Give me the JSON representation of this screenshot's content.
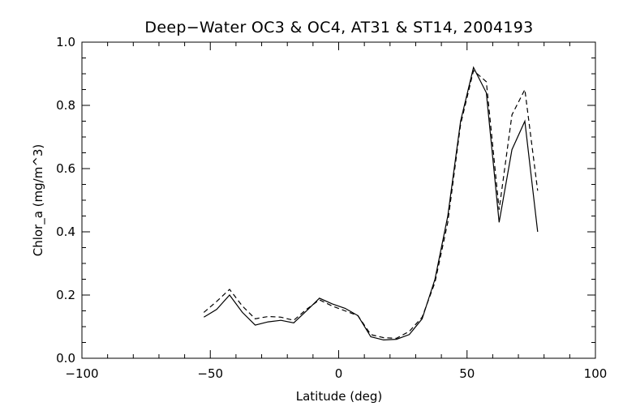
{
  "chart_data": {
    "type": "line",
    "title": "Deep−Water OC3 & OC4, AT31 & ST14, 2004193",
    "xlabel": "Latitude (deg)",
    "ylabel": "Chlor_a (mg/m^3)",
    "xlim": [
      -100,
      100
    ],
    "ylim": [
      0.0,
      1.0
    ],
    "xticks": [
      -100,
      -50,
      0,
      50,
      100
    ],
    "xtick_labels": [
      "−100",
      "−50",
      "0",
      "50",
      "100"
    ],
    "yticks": [
      0.0,
      0.2,
      0.4,
      0.6,
      0.8,
      1.0
    ],
    "ytick_labels": [
      "0.0",
      "0.2",
      "0.4",
      "0.6",
      "0.8",
      "1.0"
    ],
    "x_minor_step": 10,
    "y_minor_step": 0.05,
    "grid": false,
    "series": [
      {
        "style": "solid",
        "x": [
          -52.5,
          -47.5,
          -42.5,
          -37.5,
          -32.5,
          -27.5,
          -22.5,
          -17.5,
          -12.5,
          -7.5,
          -2.5,
          2.5,
          7.5,
          12.5,
          17.5,
          22.5,
          27.5,
          32.5,
          37.5,
          42.5,
          47.5,
          52.5,
          57.5,
          62.5,
          67.5,
          72.5,
          77.5
        ],
        "y": [
          0.13,
          0.155,
          0.2,
          0.145,
          0.105,
          0.115,
          0.12,
          0.112,
          0.15,
          0.19,
          0.172,
          0.158,
          0.135,
          0.068,
          0.058,
          0.06,
          0.075,
          0.125,
          0.25,
          0.45,
          0.75,
          0.92,
          0.84,
          0.43,
          0.66,
          0.75,
          0.4
        ]
      },
      {
        "style": "dashed",
        "x": [
          -52.5,
          -47.5,
          -42.5,
          -37.5,
          -32.5,
          -27.5,
          -22.5,
          -17.5,
          -12.5,
          -7.5,
          -2.5,
          2.5,
          7.5,
          12.5,
          17.5,
          22.5,
          27.5,
          32.5,
          37.5,
          42.5,
          47.5,
          52.5,
          57.5,
          62.5,
          67.5,
          72.5,
          77.5
        ],
        "y": [
          0.145,
          0.18,
          0.218,
          0.165,
          0.125,
          0.132,
          0.13,
          0.12,
          0.155,
          0.185,
          0.165,
          0.15,
          0.135,
          0.075,
          0.065,
          0.063,
          0.085,
          0.13,
          0.24,
          0.43,
          0.74,
          0.91,
          0.875,
          0.47,
          0.77,
          0.85,
          0.53
        ]
      }
    ]
  }
}
